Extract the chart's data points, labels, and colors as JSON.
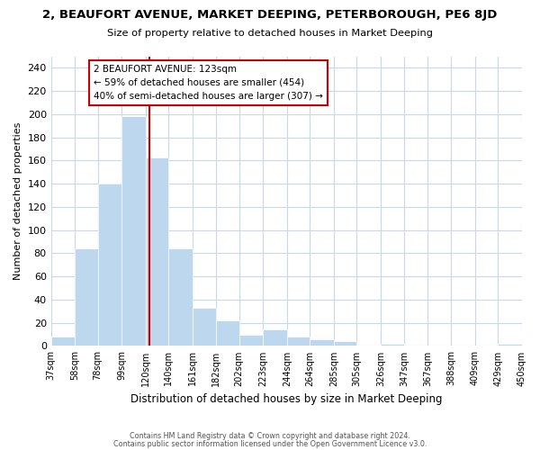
{
  "title": "2, BEAUFORT AVENUE, MARKET DEEPING, PETERBOROUGH, PE6 8JD",
  "subtitle": "Size of property relative to detached houses in Market Deeping",
  "xlabel": "Distribution of detached houses by size in Market Deeping",
  "ylabel": "Number of detached properties",
  "bar_color": "#bdd7ee",
  "vline_color": "#cc0000",
  "vline_x": 123,
  "categories": [
    "37sqm",
    "58sqm",
    "78sqm",
    "99sqm",
    "120sqm",
    "140sqm",
    "161sqm",
    "182sqm",
    "202sqm",
    "223sqm",
    "244sqm",
    "264sqm",
    "285sqm",
    "305sqm",
    "326sqm",
    "347sqm",
    "367sqm",
    "388sqm",
    "409sqm",
    "429sqm",
    "450sqm"
  ],
  "bin_edges": [
    37,
    58,
    78,
    99,
    120,
    140,
    161,
    182,
    202,
    223,
    244,
    264,
    285,
    305,
    326,
    347,
    367,
    388,
    409,
    429,
    450
  ],
  "values": [
    8,
    84,
    140,
    198,
    163,
    84,
    33,
    22,
    10,
    14,
    8,
    6,
    4,
    0,
    2,
    0,
    0,
    0,
    0,
    2
  ],
  "ylim": [
    0,
    250
  ],
  "yticks": [
    0,
    20,
    40,
    60,
    80,
    100,
    120,
    140,
    160,
    180,
    200,
    220,
    240
  ],
  "annotation_title": "2 BEAUFORT AVENUE: 123sqm",
  "annotation_line1": "← 59% of detached houses are smaller (454)",
  "annotation_line2": "40% of semi-detached houses are larger (307) →",
  "footer1": "Contains HM Land Registry data © Crown copyright and database right 2024.",
  "footer2": "Contains public sector information licensed under the Open Government Licence v3.0.",
  "background_color": "#ffffff",
  "grid_color": "#c8d8e8"
}
